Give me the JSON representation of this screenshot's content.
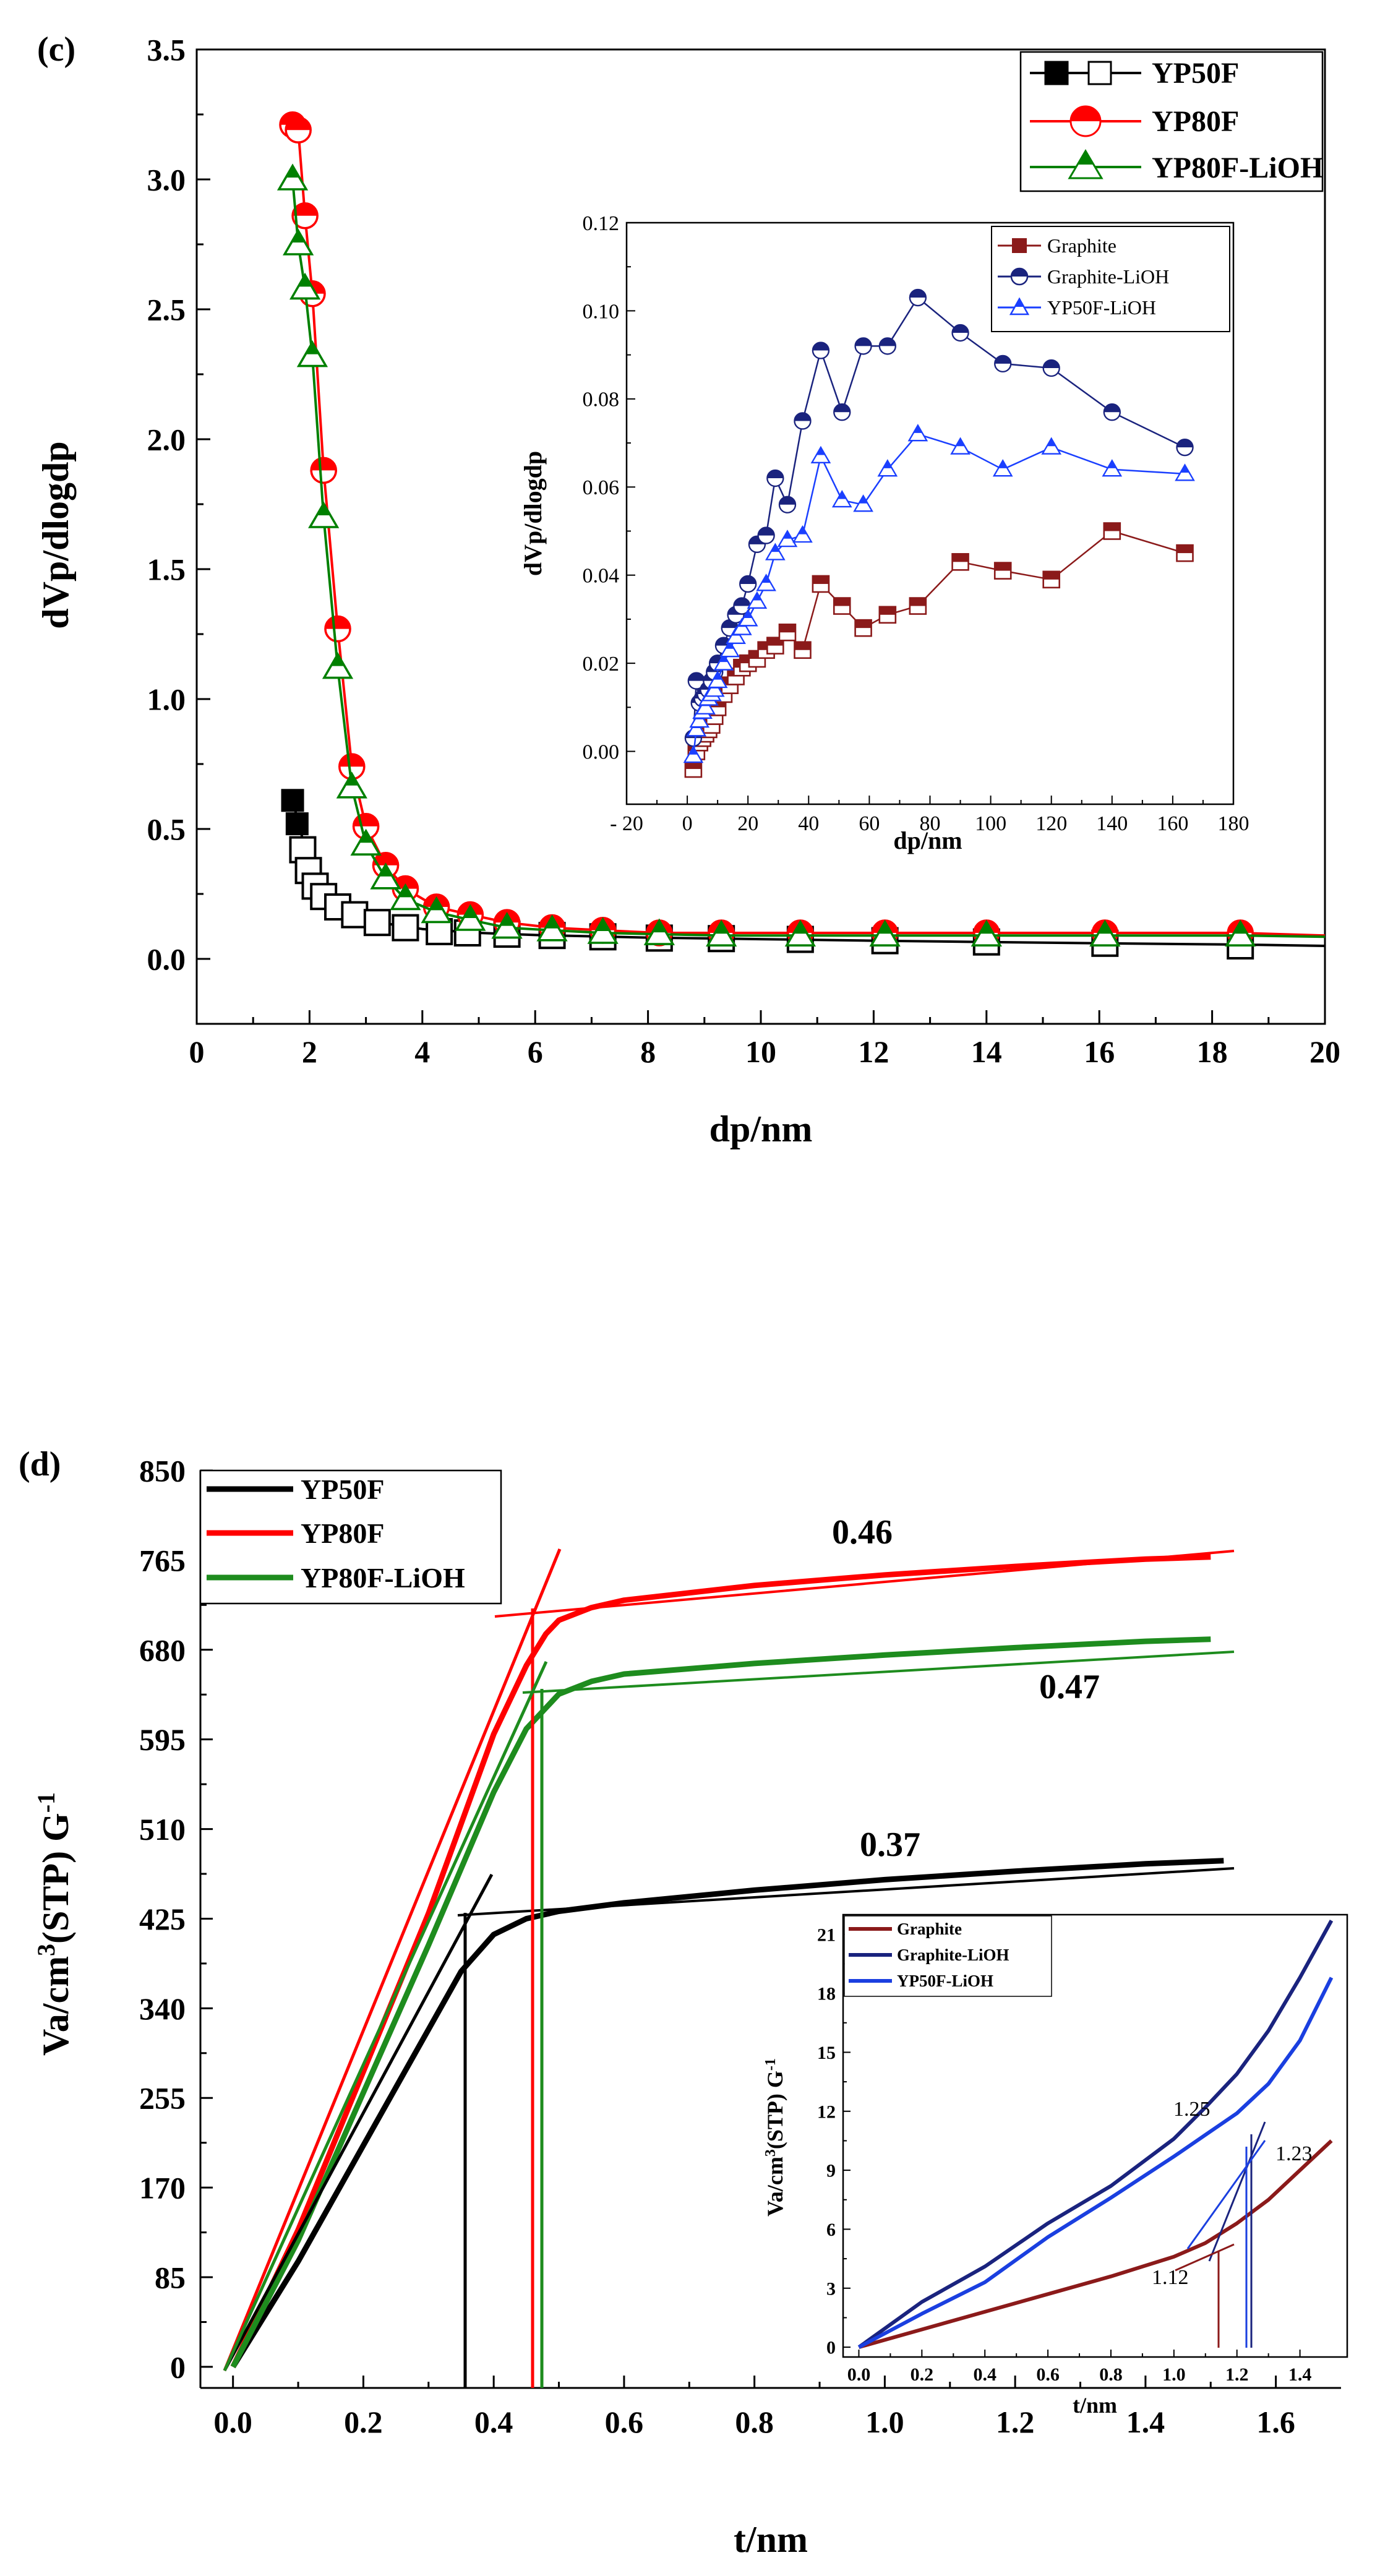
{
  "chart_data": [
    {
      "id": "c",
      "type": "scatter",
      "panel_label": "(c)",
      "xlabel": "dp/nm",
      "ylabel": "dVp/dlogdp",
      "xlim": [
        0,
        20
      ],
      "ylim": [
        -0.25,
        3.5
      ],
      "xticks": [
        0,
        2,
        4,
        6,
        8,
        10,
        12,
        14,
        16,
        18,
        20
      ],
      "yticks": [
        0.0,
        0.5,
        1.0,
        1.5,
        2.0,
        2.5,
        3.0,
        3.5
      ],
      "xtick_labels": [
        "0",
        "2",
        "4",
        "6",
        "8",
        "10",
        "12",
        "14",
        "16",
        "18",
        "20"
      ],
      "ytick_labels": [
        "0.0",
        "0.5",
        "1.0",
        "1.5",
        "2.0",
        "2.5",
        "3.0",
        "3.5"
      ],
      "legend_position": "top-right",
      "series": [
        {
          "name": "YP50F",
          "color": "#000000",
          "marker": "square",
          "x": [
            1.7,
            1.78,
            1.88,
            1.98,
            2.1,
            2.25,
            2.5,
            2.8,
            3.2,
            3.7,
            4.3,
            4.8,
            5.5,
            6.3,
            7.2,
            8.2,
            9.3,
            10.7,
            12.2,
            14.0,
            16.1,
            18.5
          ],
          "y": [
            0.61,
            0.52,
            0.42,
            0.34,
            0.28,
            0.24,
            0.2,
            0.17,
            0.14,
            0.12,
            0.105,
            0.1,
            0.095,
            0.09,
            0.085,
            0.08,
            0.078,
            0.075,
            0.07,
            0.065,
            0.06,
            0.05
          ],
          "line_x": [
            1.7,
            2.0,
            2.5,
            3.0,
            3.5,
            4.0,
            5.0,
            6.0,
            8.0,
            10.0,
            12.0,
            14.0,
            16.0,
            18.5,
            20.0
          ],
          "line_y": [
            0.61,
            0.36,
            0.22,
            0.16,
            0.13,
            0.115,
            0.1,
            0.092,
            0.082,
            0.076,
            0.07,
            0.065,
            0.06,
            0.055,
            0.05
          ]
        },
        {
          "name": "YP80F",
          "color": "#ff0000",
          "marker": "circle-half",
          "x": [
            1.7,
            1.8,
            1.92,
            2.05,
            2.25,
            2.5,
            2.75,
            3.0,
            3.35,
            3.7,
            4.25,
            4.85,
            5.5,
            6.3,
            7.2,
            8.2,
            9.3,
            10.7,
            12.2,
            14.0,
            16.1,
            18.5
          ],
          "y": [
            3.21,
            3.19,
            2.86,
            2.56,
            1.88,
            1.27,
            0.74,
            0.51,
            0.36,
            0.27,
            0.2,
            0.17,
            0.14,
            0.12,
            0.11,
            0.1,
            0.1,
            0.1,
            0.1,
            0.1,
            0.1,
            0.1
          ],
          "line_x": [
            1.7,
            1.8,
            1.92,
            2.05,
            2.25,
            2.5,
            2.75,
            3.0,
            3.35,
            3.7,
            4.25,
            4.85,
            5.5,
            6.3,
            7.2,
            8.2,
            9.3,
            10.7,
            12.2,
            14.0,
            16.1,
            18.5,
            20.0
          ],
          "line_y": [
            3.21,
            3.19,
            2.86,
            2.56,
            1.88,
            1.27,
            0.74,
            0.51,
            0.36,
            0.27,
            0.2,
            0.17,
            0.14,
            0.12,
            0.11,
            0.1,
            0.1,
            0.1,
            0.1,
            0.1,
            0.1,
            0.1,
            0.09
          ]
        },
        {
          "name": "YP80F-LiOH",
          "color": "#008000",
          "marker": "triangle-half",
          "x": [
            1.7,
            1.8,
            1.92,
            2.05,
            2.25,
            2.5,
            2.75,
            3.0,
            3.35,
            3.7,
            4.25,
            4.85,
            5.5,
            6.3,
            7.2,
            8.2,
            9.3,
            10.7,
            12.2,
            14.0,
            16.1,
            18.5
          ],
          "y": [
            3.0,
            2.75,
            2.58,
            2.32,
            1.7,
            1.12,
            0.66,
            0.44,
            0.31,
            0.23,
            0.18,
            0.15,
            0.12,
            0.11,
            0.1,
            0.095,
            0.09,
            0.09,
            0.09,
            0.09,
            0.09,
            0.09
          ],
          "line_x": [
            1.7,
            1.8,
            1.92,
            2.05,
            2.25,
            2.5,
            2.75,
            3.0,
            3.35,
            3.7,
            4.25,
            4.85,
            5.5,
            6.3,
            7.2,
            8.2,
            9.3,
            10.7,
            12.2,
            14.0,
            16.1,
            18.5,
            20.0
          ],
          "line_y": [
            3.0,
            2.75,
            2.58,
            2.32,
            1.7,
            1.12,
            0.66,
            0.44,
            0.31,
            0.23,
            0.18,
            0.15,
            0.12,
            0.11,
            0.1,
            0.095,
            0.09,
            0.09,
            0.09,
            0.09,
            0.09,
            0.09,
            0.085
          ]
        }
      ]
    },
    {
      "id": "c_inset",
      "type": "line",
      "xlabel": "dp/nm",
      "ylabel": "dVp/dlogdp",
      "xlim": [
        -20,
        180
      ],
      "ylim": [
        -0.012,
        0.12
      ],
      "xticks": [
        -20,
        0,
        20,
        40,
        60,
        80,
        100,
        120,
        140,
        160,
        180
      ],
      "yticks": [
        0.0,
        0.02,
        0.04,
        0.06,
        0.08,
        0.1,
        0.12
      ],
      "xtick_labels": [
        "- 20",
        "0",
        "20",
        "40",
        "60",
        "80",
        "100",
        "120",
        "140",
        "160",
        "180"
      ],
      "ytick_labels": [
        "0.00",
        "0.02",
        "0.04",
        "0.06",
        "0.08",
        "0.10",
        "0.12"
      ],
      "legend_position": "top-left",
      "series": [
        {
          "name": "Graphite",
          "color": "#8b1a1a",
          "marker": "square-half",
          "x": [
            2,
            3,
            4,
            5,
            6,
            7,
            8,
            9,
            10,
            12,
            14,
            16,
            18,
            20,
            23,
            26,
            29,
            33,
            38,
            44,
            51,
            58,
            66,
            76,
            90,
            104,
            120,
            140,
            164
          ],
          "y": [
            -0.004,
            0.0,
            0.002,
            0.003,
            0.004,
            0.005,
            0.006,
            0.008,
            0.01,
            0.013,
            0.015,
            0.017,
            0.019,
            0.02,
            0.021,
            0.023,
            0.024,
            0.027,
            0.023,
            0.038,
            0.033,
            0.028,
            0.031,
            0.033,
            0.043,
            0.041,
            0.039,
            0.05,
            0.045
          ]
        },
        {
          "name": "Graphite-LiOH",
          "color": "#1a237e",
          "marker": "circle-half",
          "x": [
            2,
            3,
            4,
            5,
            6,
            7,
            8,
            9,
            10,
            12,
            14,
            16,
            18,
            20,
            23,
            26,
            29,
            33,
            38,
            44,
            51,
            58,
            66,
            76,
            90,
            104,
            120,
            140,
            164
          ],
          "y": [
            0.003,
            0.016,
            0.011,
            0.012,
            0.013,
            0.014,
            0.016,
            0.018,
            0.02,
            0.024,
            0.028,
            0.031,
            0.033,
            0.038,
            0.047,
            0.049,
            0.062,
            0.056,
            0.075,
            0.091,
            0.077,
            0.092,
            0.092,
            0.103,
            0.095,
            0.088,
            0.087,
            0.077,
            0.069
          ]
        },
        {
          "name": "YP50F-LiOH",
          "color": "#1a3fff",
          "marker": "triangle-half",
          "x": [
            2,
            3,
            4,
            5,
            6,
            7,
            8,
            9,
            10,
            12,
            14,
            16,
            18,
            20,
            23,
            26,
            29,
            33,
            38,
            44,
            51,
            58,
            66,
            76,
            90,
            104,
            120,
            140,
            164
          ],
          "y": [
            -0.001,
            0.005,
            0.007,
            0.009,
            0.01,
            0.012,
            0.013,
            0.014,
            0.016,
            0.02,
            0.023,
            0.026,
            0.028,
            0.03,
            0.034,
            0.038,
            0.045,
            0.048,
            0.049,
            0.067,
            0.057,
            0.056,
            0.064,
            0.072,
            0.069,
            0.064,
            0.069,
            0.064,
            0.063
          ]
        }
      ]
    },
    {
      "id": "d",
      "type": "line",
      "panel_label": "(d)",
      "xlabel": "t/nm",
      "ylabel_parts": {
        "a": "Va/cm",
        "b": "3",
        "c": "(STP) G",
        "d": "-1"
      },
      "xlim": [
        -0.05,
        1.7
      ],
      "ylim": [
        -20,
        850
      ],
      "xticks": [
        0.0,
        0.2,
        0.4,
        0.6,
        0.8,
        1.0,
        1.2,
        1.4,
        1.6
      ],
      "yticks": [
        0,
        85,
        170,
        255,
        340,
        425,
        510,
        595,
        680,
        765,
        850
      ],
      "xtick_labels": [
        "0.0",
        "0.2",
        "0.4",
        "0.6",
        "0.8",
        "1.0",
        "1.2",
        "1.4",
        "1.6"
      ],
      "ytick_labels": [
        "0",
        "85",
        "170",
        "255",
        "340",
        "425",
        "510",
        "595",
        "680",
        "765",
        "850"
      ],
      "legend_position": "top-left",
      "annotations": [
        "0.46",
        "0.47",
        "0.37"
      ],
      "series": [
        {
          "name": "YP50F",
          "color": "#000000",
          "x": [
            0.0,
            0.1,
            0.2,
            0.3,
            0.35,
            0.4,
            0.45,
            0.5,
            0.6,
            0.8,
            1.0,
            1.2,
            1.4,
            1.52
          ],
          "y": [
            0,
            100,
            210,
            320,
            375,
            410,
            425,
            432,
            440,
            452,
            462,
            470,
            477,
            480
          ]
        },
        {
          "name": "YP80F",
          "color": "#ff0000",
          "x": [
            0.0,
            0.1,
            0.2,
            0.3,
            0.4,
            0.45,
            0.48,
            0.5,
            0.55,
            0.6,
            0.8,
            1.0,
            1.2,
            1.4,
            1.5
          ],
          "y": [
            0,
            130,
            280,
            430,
            600,
            665,
            695,
            708,
            720,
            727,
            741,
            751,
            759,
            766,
            768
          ]
        },
        {
          "name": "YP80F-LiOH",
          "color": "#1e8c1e",
          "x": [
            0.0,
            0.1,
            0.2,
            0.3,
            0.4,
            0.45,
            0.5,
            0.55,
            0.6,
            0.8,
            1.0,
            1.2,
            1.4,
            1.5
          ],
          "y": [
            0,
            120,
            260,
            400,
            545,
            605,
            638,
            650,
            657,
            667,
            675,
            682,
            688,
            690
          ]
        }
      ]
    },
    {
      "id": "d_inset",
      "type": "line",
      "xlabel": "t/nm",
      "ylabel_parts": {
        "a": "Va/cm",
        "b": "3",
        "c": "(STP) G",
        "d": "-1"
      },
      "xlim": [
        -0.05,
        1.55
      ],
      "ylim": [
        -0.5,
        22
      ],
      "xticks": [
        0.0,
        0.2,
        0.4,
        0.6,
        0.8,
        1.0,
        1.2,
        1.4
      ],
      "yticks": [
        0,
        3,
        6,
        9,
        12,
        15,
        18,
        21
      ],
      "xtick_labels": [
        "0.0",
        "0.2",
        "0.4",
        "0.6",
        "0.8",
        "1.0",
        "1.2",
        "1.4"
      ],
      "ytick_labels": [
        "0",
        "3",
        "6",
        "9",
        "12",
        "15",
        "18",
        "21"
      ],
      "legend_position": "top-left",
      "annotations": [
        "1.25",
        "1.23",
        "1.12"
      ],
      "series": [
        {
          "name": "Graphite",
          "color": "#8b1a1a",
          "x": [
            0.0,
            0.2,
            0.4,
            0.6,
            0.8,
            1.0,
            1.1,
            1.2,
            1.3,
            1.4,
            1.5
          ],
          "y": [
            0,
            0.9,
            1.8,
            2.7,
            3.6,
            4.6,
            5.3,
            6.3,
            7.5,
            9.0,
            10.5
          ]
        },
        {
          "name": "Graphite-LiOH",
          "color": "#1a237e",
          "x": [
            0.0,
            0.2,
            0.4,
            0.6,
            0.8,
            1.0,
            1.1,
            1.2,
            1.3,
            1.4,
            1.5
          ],
          "y": [
            0,
            2.3,
            4.1,
            6.3,
            8.2,
            10.6,
            12.2,
            13.9,
            16.1,
            18.8,
            21.7
          ]
        },
        {
          "name": "YP50F-LiOH",
          "color": "#1a3fe0",
          "x": [
            0.0,
            0.2,
            0.4,
            0.6,
            0.8,
            1.0,
            1.1,
            1.2,
            1.3,
            1.4,
            1.5
          ],
          "y": [
            0,
            1.7,
            3.3,
            5.6,
            7.6,
            9.7,
            10.8,
            11.9,
            13.4,
            15.6,
            18.8
          ]
        }
      ]
    }
  ]
}
